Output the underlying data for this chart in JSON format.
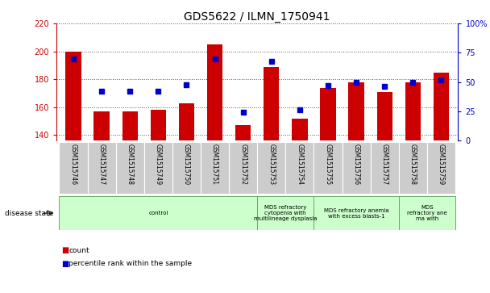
{
  "title": "GDS5622 / ILMN_1750941",
  "samples": [
    "GSM1515746",
    "GSM1515747",
    "GSM1515748",
    "GSM1515749",
    "GSM1515750",
    "GSM1515751",
    "GSM1515752",
    "GSM1515753",
    "GSM1515754",
    "GSM1515755",
    "GSM1515756",
    "GSM1515757",
    "GSM1515758",
    "GSM1515759"
  ],
  "counts": [
    200,
    157,
    157,
    158,
    163,
    205,
    147,
    189,
    152,
    174,
    178,
    171,
    178,
    185
  ],
  "percentiles": [
    70,
    42,
    42,
    42,
    48,
    70,
    24,
    68,
    26,
    47,
    50,
    46,
    50,
    52
  ],
  "ylim_left": [
    136,
    220
  ],
  "ylim_right": [
    0,
    100
  ],
  "yticks_left": [
    140,
    160,
    180,
    200,
    220
  ],
  "yticks_right": [
    0,
    25,
    50,
    75,
    100
  ],
  "bar_color": "#cc0000",
  "dot_color": "#0000cc",
  "bar_bottom": 136,
  "groups": [
    {
      "label": "control",
      "start": 0,
      "end": 7,
      "color": "#ccffcc"
    },
    {
      "label": "MDS refractory\ncytopenia with\nmultilineage dysplasia",
      "start": 7,
      "end": 9,
      "color": "#ccffcc"
    },
    {
      "label": "MDS refractory anemia\nwith excess blasts-1",
      "start": 9,
      "end": 12,
      "color": "#ccffcc"
    },
    {
      "label": "MDS\nrefractory ane\nma with",
      "start": 12,
      "end": 14,
      "color": "#ccffcc"
    }
  ],
  "disease_state_label": "disease state",
  "legend_count_label": "count",
  "legend_pct_label": "percentile rank within the sample",
  "bg_color": "#ffffff",
  "tick_area_color": "#cccccc",
  "grid_color": "#555555",
  "title_fontsize": 10,
  "tick_fontsize": 7,
  "xlim": [
    -0.6,
    13.6
  ]
}
